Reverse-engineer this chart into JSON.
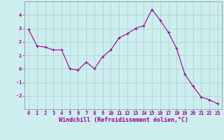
{
  "x": [
    0,
    1,
    2,
    3,
    4,
    5,
    6,
    7,
    8,
    9,
    10,
    11,
    12,
    13,
    14,
    15,
    16,
    17,
    18,
    19,
    20,
    21,
    22,
    23
  ],
  "y": [
    2.9,
    1.7,
    1.6,
    1.4,
    1.4,
    0.0,
    -0.1,
    0.5,
    0.0,
    0.9,
    1.4,
    2.3,
    2.6,
    3.0,
    3.2,
    4.4,
    3.6,
    2.7,
    1.5,
    -0.4,
    -1.3,
    -2.1,
    -2.3,
    -2.6
  ],
  "line_color": "#990099",
  "marker": "+",
  "marker_size": 3,
  "marker_linewidth": 0.8,
  "line_width": 0.8,
  "bg_color": "#cceeee",
  "grid_color": "#aacccc",
  "xlabel": "Windchill (Refroidissement éolien,°C)",
  "xlabel_color": "#990099",
  "tick_color": "#990099",
  "label_color": "#990099",
  "ylim": [
    -3,
    5
  ],
  "yticks": [
    -2,
    -1,
    0,
    1,
    2,
    3,
    4
  ],
  "xlim": [
    -0.5,
    23.5
  ],
  "xticks": [
    0,
    1,
    2,
    3,
    4,
    5,
    6,
    7,
    8,
    9,
    10,
    11,
    12,
    13,
    14,
    15,
    16,
    17,
    18,
    19,
    20,
    21,
    22,
    23
  ],
  "spine_color": "#999999",
  "tick_fontsize": 5.0,
  "ylabel_fontsize": 6.0,
  "xlabel_fontsize": 6.0
}
